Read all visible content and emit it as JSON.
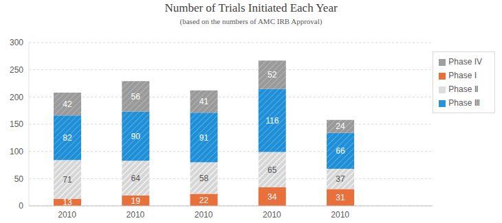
{
  "chart_data": {
    "type": "bar",
    "title": "Number of Trials Initiated Each Year",
    "subtitle": "(based on the numbers of AMC IRB Approval)",
    "categories": [
      "2010",
      "2010",
      "2010",
      "2010",
      "2010"
    ],
    "series": [
      {
        "name": "Phase Ⅰ",
        "color": "#e8703a",
        "values": [
          13,
          19,
          22,
          34,
          31
        ]
      },
      {
        "name": "Phase Ⅱ",
        "color": "#d6d6d6",
        "values": [
          71,
          64,
          58,
          65,
          37
        ]
      },
      {
        "name": "Phase Ⅲ",
        "color": "#1f8fd8",
        "values": [
          82,
          90,
          91,
          116,
          66
        ]
      },
      {
        "name": "Phase IV",
        "color": "#9a9a9a",
        "values": [
          42,
          56,
          41,
          52,
          24
        ]
      }
    ],
    "ylim": [
      0,
      300
    ],
    "yticks": [
      0,
      50,
      100,
      150,
      200,
      250,
      300
    ],
    "grid": true,
    "stacked": true,
    "data_labels": true,
    "legend": "upper right"
  }
}
